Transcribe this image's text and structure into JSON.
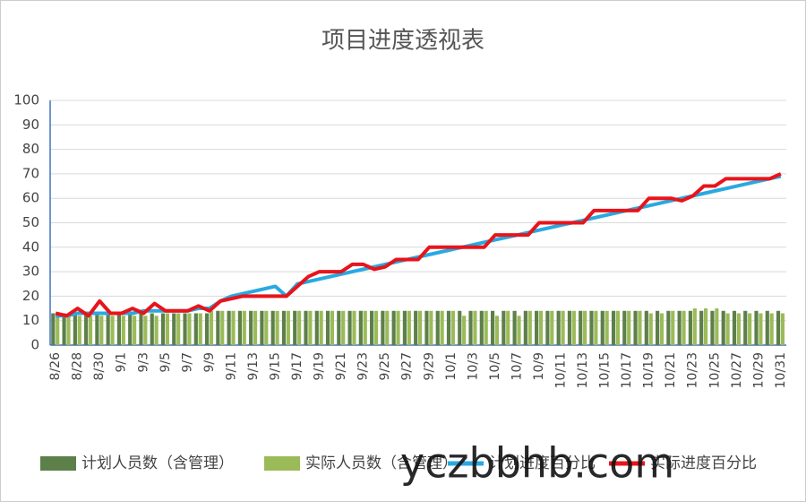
{
  "chart_data": {
    "type": "combo",
    "title": "项目进度透视表",
    "watermark": "yczbbhb.com",
    "categories": [
      "8/26",
      null,
      "8/28",
      null,
      "8/30",
      null,
      "9/1",
      null,
      "9/3",
      null,
      "9/5",
      null,
      "9/7",
      null,
      "9/9",
      null,
      "9/11",
      null,
      "9/13",
      null,
      "9/15",
      null,
      "9/17",
      null,
      "9/19",
      null,
      "9/21",
      null,
      "9/23",
      null,
      "9/25",
      null,
      "9/27",
      null,
      "9/29",
      null,
      "10/1",
      null,
      "10/3",
      null,
      "10/5",
      null,
      "10/7",
      null,
      "10/9",
      null,
      "10/11",
      null,
      "10/13",
      null,
      "10/15",
      null,
      "10/17",
      null,
      "10/19",
      null,
      "10/21",
      null,
      "10/23",
      null,
      "10/25",
      null,
      "10/27",
      null,
      "10/29",
      null,
      "10/31"
    ],
    "ylim": [
      0,
      100
    ],
    "yticks": [
      0,
      10,
      20,
      30,
      40,
      50,
      60,
      70,
      80,
      90,
      100
    ],
    "grid": true,
    "legend": "bottom",
    "series": [
      {
        "name": "计划人员数（含管理）",
        "type": "bar",
        "color": "#5d7f4a",
        "values": [
          13,
          13,
          13,
          13,
          13,
          13,
          13,
          13,
          13,
          13,
          13,
          13,
          13,
          13,
          13,
          14,
          14,
          14,
          14,
          14,
          14,
          14,
          14,
          14,
          14,
          14,
          14,
          14,
          14,
          14,
          14,
          14,
          14,
          14,
          14,
          14,
          14,
          14,
          14,
          14,
          14,
          14,
          14,
          14,
          14,
          14,
          14,
          14,
          14,
          14,
          14,
          14,
          14,
          14,
          14,
          14,
          14,
          14,
          14,
          14,
          14,
          14,
          14,
          14,
          14,
          14,
          14
        ]
      },
      {
        "name": "实际人员数（含管理）",
        "type": "bar",
        "color": "#9bbb59",
        "values": [
          12,
          12,
          12,
          12,
          12,
          12,
          12,
          12,
          12,
          12,
          13,
          13,
          13,
          13,
          14,
          14,
          14,
          14,
          14,
          14,
          14,
          14,
          14,
          14,
          14,
          14,
          14,
          14,
          14,
          14,
          14,
          14,
          14,
          14,
          14,
          14,
          14,
          12,
          14,
          14,
          12,
          14,
          12,
          14,
          14,
          14,
          14,
          14,
          14,
          14,
          14,
          14,
          14,
          14,
          13,
          13,
          14,
          14,
          15,
          15,
          15,
          13,
          13,
          13,
          13,
          13,
          13
        ]
      },
      {
        "name": "计划进度百分比",
        "type": "line",
        "color": "#29a9e0",
        "values": [
          12,
          12,
          13,
          13,
          13,
          13,
          13,
          13,
          14,
          14,
          14,
          14,
          14,
          15,
          15,
          18,
          20,
          21,
          22,
          23,
          24,
          20,
          25,
          26,
          27,
          28,
          29,
          30,
          31,
          32,
          33,
          34,
          35,
          36,
          37,
          38,
          39,
          40,
          41,
          42,
          43,
          44,
          45,
          46,
          47,
          48,
          49,
          50,
          51,
          52,
          53,
          54,
          55,
          56,
          57,
          58,
          59,
          60,
          61,
          62,
          63,
          64,
          65,
          66,
          67,
          68,
          69
        ]
      },
      {
        "name": "实际进度百分比",
        "type": "line",
        "color": "#e8141b",
        "values": [
          13,
          12,
          15,
          12,
          18,
          13,
          13,
          15,
          13,
          17,
          14,
          14,
          14,
          16,
          14,
          18,
          19,
          20,
          20,
          20,
          20,
          20,
          24,
          28,
          30,
          30,
          30,
          33,
          33,
          31,
          32,
          35,
          35,
          35,
          40,
          40,
          40,
          40,
          40,
          40,
          45,
          45,
          45,
          45,
          50,
          50,
          50,
          50,
          50,
          55,
          55,
          55,
          55,
          55,
          60,
          60,
          60,
          59,
          61,
          65,
          65,
          68,
          68,
          68,
          68,
          68,
          70
        ]
      }
    ]
  }
}
